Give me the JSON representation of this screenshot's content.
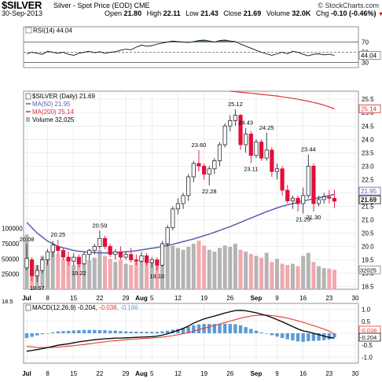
{
  "header": {
    "symbol": "$SILVER",
    "description": "Silver - Spot Price (EOD)",
    "exchange": "CME",
    "brand": "© StockCharts.com",
    "date": "30-Sep-2013",
    "open_label": "Open",
    "open": "21.80",
    "high_label": "High",
    "high": "22.11",
    "low_label": "Low",
    "low": "21.43",
    "close_label": "Close",
    "close": "21.69",
    "volume_label": "Volume",
    "volume": "32.0K",
    "chg_label": "Chg",
    "chg": "-0.10 (-0.46%)"
  },
  "colors": {
    "up": "#2b2b2b",
    "down": "#e0103c",
    "ma50": "#5a5fb0",
    "ma200": "#e0303c",
    "rsi_fill": "#4e8a4e",
    "volume_up": "#b4b4b4",
    "volume_down": "#f0a8ae",
    "macd_line": "#000000",
    "signal_line": "#e8392e",
    "histogram": "#5b9bd5"
  },
  "chart_data": [
    {
      "type": "line",
      "panel": "rsi",
      "legend": "RSI(14) 44.04",
      "y_ticks": [
        "70",
        "50",
        "30"
      ],
      "last_value_tag": "44.04",
      "series": [
        {
          "name": "RSI(14)",
          "values": [
            47,
            50,
            48,
            46,
            52,
            50,
            48,
            50,
            46,
            44,
            48,
            50,
            52,
            49,
            51,
            48,
            50,
            51,
            54,
            56,
            55,
            60,
            64,
            62,
            63,
            66,
            68,
            70,
            72,
            71,
            70,
            69,
            71,
            73,
            74,
            72,
            70,
            73,
            74,
            72,
            71,
            66,
            62,
            58,
            54,
            50,
            47,
            44,
            47,
            50,
            47,
            52,
            50,
            46,
            43,
            46,
            47,
            45,
            46,
            44
          ]
        }
      ]
    },
    {
      "type": "candlestick",
      "panel": "price",
      "legend": [
        "$SILVER (Daily) 21.69",
        "MA(50) 21.95",
        "MA(200) 25.14",
        "Volume 32,025"
      ],
      "ylim": [
        18.4,
        25.8
      ],
      "y_ticks": [
        "25.5",
        "25.0",
        "24.5",
        "24.0",
        "23.5",
        "23.0",
        "22.5",
        "22.0",
        "21.5",
        "21.0",
        "20.5",
        "20.0",
        "19.5",
        "19.0",
        "18.5"
      ],
      "last_value_tags": [
        "25.14",
        "21.95",
        "21.69"
      ],
      "volume_ticks": [
        "100000",
        "75000",
        "50000",
        "25000"
      ],
      "volume_last_tag": "32025",
      "annotations": [
        {
          "label": "20.08",
          "day": 0
        },
        {
          "label": "18.67",
          "day": 2
        },
        {
          "label": "20.25",
          "day": 6
        },
        {
          "label": "19.22",
          "day": 10
        },
        {
          "label": "20.59",
          "day": 14
        },
        {
          "label": "19.10",
          "day": 25
        },
        {
          "label": "23.60",
          "day": 33
        },
        {
          "label": "22.28",
          "day": 35
        },
        {
          "label": "25.12",
          "day": 40
        },
        {
          "label": "24.43",
          "day": 42
        },
        {
          "label": "23.11",
          "day": 43
        },
        {
          "label": "24.25",
          "day": 46
        },
        {
          "label": "21.23",
          "day": 53
        },
        {
          "label": "23.44",
          "day": 54
        },
        {
          "label": "21.30",
          "day": 55
        }
      ],
      "ohlc": [
        [
          19.2,
          20.08,
          19.1,
          19.55
        ],
        [
          19.5,
          19.6,
          18.7,
          18.9
        ],
        [
          18.9,
          19.3,
          18.67,
          19.1
        ],
        [
          19.1,
          19.6,
          19.0,
          19.5
        ],
        [
          19.5,
          19.9,
          19.3,
          19.8
        ],
        [
          19.8,
          20.2,
          19.6,
          20.05
        ],
        [
          20.0,
          20.25,
          19.7,
          19.85
        ],
        [
          19.85,
          19.95,
          19.5,
          19.6
        ],
        [
          19.6,
          19.8,
          19.3,
          19.45
        ],
        [
          19.45,
          19.75,
          19.3,
          19.6
        ],
        [
          19.6,
          19.7,
          19.22,
          19.35
        ],
        [
          19.35,
          19.8,
          19.3,
          19.7
        ],
        [
          19.7,
          19.9,
          19.5,
          19.85
        ],
        [
          19.85,
          20.1,
          19.7,
          20.0
        ],
        [
          20.0,
          20.59,
          19.9,
          20.3
        ],
        [
          20.3,
          20.4,
          19.9,
          20.0
        ],
        [
          20.0,
          20.1,
          19.6,
          19.7
        ],
        [
          19.7,
          19.9,
          19.5,
          19.8
        ],
        [
          19.8,
          20.0,
          19.5,
          19.6
        ],
        [
          19.6,
          19.8,
          19.5,
          19.7
        ],
        [
          19.7,
          19.95,
          19.4,
          19.5
        ],
        [
          19.5,
          19.7,
          19.3,
          19.45
        ],
        [
          19.45,
          19.8,
          19.4,
          19.65
        ],
        [
          19.65,
          19.75,
          19.3,
          19.4
        ],
        [
          19.4,
          19.6,
          19.2,
          19.5
        ],
        [
          19.5,
          19.6,
          19.1,
          19.3
        ],
        [
          19.3,
          20.2,
          19.25,
          20.1
        ],
        [
          20.1,
          20.8,
          20.0,
          20.7
        ],
        [
          20.7,
          21.5,
          20.6,
          21.4
        ],
        [
          21.4,
          21.8,
          21.2,
          21.6
        ],
        [
          21.6,
          22.0,
          21.4,
          21.9
        ],
        [
          21.9,
          22.7,
          21.7,
          22.6
        ],
        [
          22.6,
          23.2,
          22.4,
          23.1
        ],
        [
          23.1,
          23.6,
          22.8,
          23.0
        ],
        [
          23.0,
          23.1,
          22.5,
          22.7
        ],
        [
          22.7,
          23.0,
          22.28,
          22.9
        ],
        [
          22.9,
          23.3,
          22.7,
          23.2
        ],
        [
          23.2,
          23.9,
          23.0,
          23.8
        ],
        [
          23.8,
          24.6,
          23.7,
          24.5
        ],
        [
          24.5,
          24.9,
          24.3,
          24.7
        ],
        [
          24.7,
          25.12,
          24.5,
          24.9
        ],
        [
          24.9,
          24.95,
          23.6,
          23.8
        ],
        [
          23.8,
          24.43,
          23.5,
          24.2
        ],
        [
          24.2,
          24.3,
          23.11,
          23.4
        ],
        [
          23.4,
          24.0,
          23.3,
          23.9
        ],
        [
          23.9,
          24.0,
          23.2,
          23.3
        ],
        [
          23.3,
          24.25,
          23.2,
          23.6
        ],
        [
          23.6,
          23.7,
          22.6,
          22.8
        ],
        [
          22.8,
          23.1,
          22.5,
          22.9
        ],
        [
          22.9,
          23.0,
          21.9,
          22.1
        ],
        [
          22.1,
          22.3,
          21.6,
          21.7
        ],
        [
          21.7,
          21.9,
          21.4,
          21.8
        ],
        [
          21.8,
          21.9,
          21.3,
          21.6
        ],
        [
          21.6,
          22.2,
          21.23,
          21.9
        ],
        [
          21.9,
          23.44,
          21.8,
          23.0
        ],
        [
          23.0,
          23.1,
          21.3,
          21.6
        ],
        [
          21.6,
          21.9,
          21.5,
          21.75
        ],
        [
          21.75,
          22.0,
          21.6,
          21.85
        ],
        [
          21.85,
          22.11,
          21.6,
          21.8
        ],
        [
          21.8,
          22.11,
          21.43,
          21.69
        ]
      ],
      "ma50": [
        20.9,
        20.7,
        20.5,
        20.35,
        20.2,
        20.1,
        20.0,
        19.95,
        19.9,
        19.85,
        19.82,
        19.8,
        19.78,
        19.77,
        19.76,
        19.76,
        19.76,
        19.77,
        19.78,
        19.8,
        19.82,
        19.84,
        19.87,
        19.9,
        19.93,
        19.96,
        20.0,
        20.04,
        20.08,
        20.13,
        20.18,
        20.23,
        20.28,
        20.34,
        20.4,
        20.46,
        20.53,
        20.6,
        20.67,
        20.74,
        20.82,
        20.9,
        20.98,
        21.06,
        21.14,
        21.22,
        21.3,
        21.37,
        21.44,
        21.5,
        21.55,
        21.6,
        21.65,
        21.7,
        21.74,
        21.78,
        21.82,
        21.86,
        21.9,
        21.95
      ],
      "ma200": [
        null,
        null,
        null,
        null,
        null,
        null,
        null,
        null,
        null,
        null,
        null,
        null,
        null,
        null,
        null,
        null,
        null,
        null,
        null,
        null,
        null,
        null,
        null,
        null,
        null,
        null,
        null,
        null,
        null,
        null,
        null,
        null,
        null,
        null,
        null,
        null,
        null,
        null,
        null,
        25.8,
        25.78,
        25.76,
        25.74,
        25.72,
        25.7,
        25.68,
        25.66,
        25.64,
        25.62,
        25.59,
        25.56,
        25.53,
        25.5,
        25.46,
        25.42,
        25.38,
        25.33,
        25.28,
        25.21,
        25.14
      ],
      "volume": [
        90000,
        30000,
        40000,
        55000,
        60000,
        70000,
        58000,
        50000,
        45000,
        40000,
        42000,
        45000,
        48000,
        52000,
        65000,
        55000,
        50000,
        45000,
        48000,
        42000,
        40000,
        45000,
        50000,
        52000,
        48000,
        46000,
        70000,
        75000,
        72000,
        68000,
        65000,
        70000,
        75000,
        80000,
        72000,
        65000,
        62000,
        68000,
        72000,
        70000,
        75000,
        65000,
        62000,
        58000,
        55000,
        52000,
        60000,
        45000,
        50000,
        42000,
        40000,
        42000,
        38000,
        55000,
        60000,
        45000,
        38000,
        35000,
        34000,
        32025
      ]
    },
    {
      "type": "line",
      "panel": "macd",
      "legend": [
        "MACD(12,26,9)",
        "-0.204",
        "-0.038",
        "-0.166"
      ],
      "y_ticks": [
        "1.0",
        "0.5",
        "0.0",
        "-0.5",
        "-1.0"
      ],
      "last_value_tags": [
        "-0.038",
        "-0.204"
      ],
      "series": [
        {
          "name": "MACD(12,26,9)",
          "values": [
            -0.75,
            -0.72,
            -0.68,
            -0.64,
            -0.6,
            -0.55,
            -0.5,
            -0.47,
            -0.44,
            -0.4,
            -0.36,
            -0.33,
            -0.3,
            -0.27,
            -0.25,
            -0.23,
            -0.22,
            -0.2,
            -0.2,
            -0.19,
            -0.18,
            -0.17,
            -0.16,
            -0.15,
            -0.14,
            -0.12,
            -0.08,
            -0.02,
            0.05,
            0.12,
            0.2,
            0.3,
            0.42,
            0.52,
            0.6,
            0.66,
            0.72,
            0.78,
            0.85,
            0.9,
            0.95,
            0.96,
            0.94,
            0.9,
            0.86,
            0.8,
            0.74,
            0.66,
            0.57,
            0.48,
            0.38,
            0.28,
            0.18,
            0.1,
            0.06,
            0.0,
            -0.06,
            -0.12,
            -0.17,
            -0.204
          ]
        },
        {
          "name": "signal",
          "values": [
            -0.55,
            -0.57,
            -0.59,
            -0.6,
            -0.6,
            -0.59,
            -0.58,
            -0.56,
            -0.54,
            -0.52,
            -0.49,
            -0.47,
            -0.44,
            -0.41,
            -0.38,
            -0.36,
            -0.33,
            -0.31,
            -0.29,
            -0.27,
            -0.25,
            -0.24,
            -0.22,
            -0.21,
            -0.2,
            -0.18,
            -0.16,
            -0.13,
            -0.1,
            -0.06,
            -0.02,
            0.03,
            0.09,
            0.15,
            0.21,
            0.27,
            0.33,
            0.39,
            0.45,
            0.51,
            0.57,
            0.63,
            0.68,
            0.72,
            0.75,
            0.76,
            0.76,
            0.74,
            0.71,
            0.68,
            0.63,
            0.58,
            0.52,
            0.46,
            0.39,
            0.32,
            0.25,
            0.17,
            0.09,
            -0.038
          ]
        },
        {
          "name": "histogram",
          "values": [
            -0.2,
            -0.15,
            -0.09,
            -0.04,
            0.0,
            0.04,
            0.08,
            0.09,
            0.1,
            0.12,
            0.13,
            0.14,
            0.14,
            0.14,
            0.13,
            0.13,
            0.11,
            0.11,
            0.09,
            0.08,
            0.07,
            0.07,
            0.06,
            0.06,
            0.06,
            0.06,
            0.08,
            0.11,
            0.15,
            0.18,
            0.22,
            0.27,
            0.33,
            0.37,
            0.39,
            0.39,
            0.39,
            0.39,
            0.4,
            0.39,
            0.38,
            0.33,
            0.26,
            0.18,
            0.11,
            0.04,
            -0.02,
            -0.08,
            -0.14,
            -0.2,
            -0.25,
            -0.3,
            -0.34,
            -0.36,
            -0.33,
            -0.32,
            -0.31,
            -0.29,
            -0.26,
            -0.166
          ]
        }
      ]
    }
  ],
  "x_axis_labels": [
    {
      "label": "Jul",
      "day": 0,
      "bold": true
    },
    {
      "label": "8",
      "day": 4,
      "bold": false
    },
    {
      "label": "15",
      "day": 9,
      "bold": false
    },
    {
      "label": "22",
      "day": 14,
      "bold": false
    },
    {
      "label": "29",
      "day": 19,
      "bold": false
    },
    {
      "label": "Aug",
      "day": 22,
      "bold": true
    },
    {
      "label": "5",
      "day": 24,
      "bold": false
    },
    {
      "label": "12",
      "day": 29,
      "bold": false
    },
    {
      "label": "19",
      "day": 34,
      "bold": false
    },
    {
      "label": "26",
      "day": 39,
      "bold": false
    },
    {
      "label": "Sep",
      "day": 44,
      "bold": true
    },
    {
      "label": "9",
      "day": 48,
      "bold": false
    },
    {
      "label": "16",
      "day": 53,
      "bold": false
    },
    {
      "label": "23",
      "day": 58,
      "bold": false
    },
    {
      "label": "30",
      "day": 63,
      "bold": false
    }
  ],
  "volume_side_label": "18.5"
}
